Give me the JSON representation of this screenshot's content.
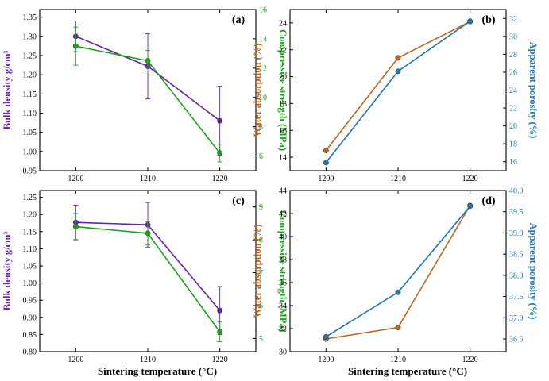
{
  "colors": {
    "purple": "#6a22a8",
    "green": "#1aa31a",
    "orange": "#c0651e",
    "blue": "#1f77b4",
    "axis": "#000000"
  },
  "xlabel_bottom_left": "Sintering temperature (°C)",
  "xlabel_bottom_right": "Sintering temperature (°C)",
  "chart_data": [
    {
      "id": "a",
      "type": "line",
      "panel_label": "(a)",
      "categories": [
        "1200",
        "1210",
        "1220"
      ],
      "x": [
        1200,
        1210,
        1220
      ],
      "xlim": [
        1195,
        1225
      ],
      "left_axis": {
        "label": "Bulk density g/cm³",
        "ylim": [
          0.95,
          1.37
        ],
        "ticks": [
          "0.95",
          "1.00",
          "1.05",
          "1.10",
          "1.15",
          "1.20",
          "1.25",
          "1.30",
          "1.35"
        ],
        "color_key": "purple"
      },
      "right_axis": {
        "label": "Compressive strength (MPa)",
        "ylim": [
          5,
          16
        ],
        "ticks": [
          "6",
          "8",
          "10",
          "12",
          "14",
          "16"
        ],
        "color_key": "green"
      },
      "series": [
        {
          "name": "Bulk density",
          "axis": "left",
          "color_key": "purple",
          "values": [
            1.3,
            1.222,
            1.08
          ],
          "errors": [
            0.04,
            0.085,
            0.09
          ]
        },
        {
          "name": "Compressive strength",
          "axis": "right",
          "color_key": "green",
          "values": [
            13.5,
            12.5,
            6.2
          ],
          "errors": [
            1.3,
            0.7,
            0.6
          ]
        }
      ]
    },
    {
      "id": "b",
      "type": "line",
      "panel_label": "(b)",
      "categories": [
        "1200",
        "1210",
        "1220"
      ],
      "x": [
        1200,
        1210,
        1220
      ],
      "xlim": [
        1195,
        1225
      ],
      "left_axis": {
        "label": "Water absorption (%)",
        "ylim": [
          13,
          25
        ],
        "ticks": [
          "14",
          "16",
          "18",
          "20",
          "22",
          "24"
        ],
        "color_key": "orange"
      },
      "right_axis": {
        "label": "Apparent porosity (%)",
        "ylim": [
          15,
          33
        ],
        "ticks": [
          "16",
          "18",
          "20",
          "22",
          "24",
          "26",
          "28",
          "30",
          "32"
        ],
        "color_key": "blue"
      },
      "series": [
        {
          "name": "Water absorption",
          "axis": "left",
          "color_key": "orange",
          "values": [
            14.5,
            21.4,
            24.1
          ],
          "errors": []
        },
        {
          "name": "Apparent porosity",
          "axis": "right",
          "color_key": "blue",
          "values": [
            15.9,
            26.1,
            31.7
          ],
          "errors": []
        }
      ]
    },
    {
      "id": "c",
      "type": "line",
      "panel_label": "(c)",
      "categories": [
        "1200",
        "1210",
        "1220"
      ],
      "x": [
        1200,
        1210,
        1220
      ],
      "xlim": [
        1195,
        1225
      ],
      "left_axis": {
        "label": "Bulk density g/cm³",
        "ylim": [
          0.8,
          1.27
        ],
        "ticks": [
          "0.80",
          "0.85",
          "0.90",
          "0.95",
          "1.00",
          "1.05",
          "1.10",
          "1.15",
          "1.20",
          "1.25"
        ],
        "color_key": "purple"
      },
      "right_axis": {
        "label": "Compressive strength (MPa)",
        "ylim": [
          4.6,
          9.5
        ],
        "ticks": [
          "5",
          "6",
          "7",
          "8",
          "9"
        ],
        "color_key": "green"
      },
      "series": [
        {
          "name": "Bulk density",
          "axis": "left",
          "color_key": "purple",
          "values": [
            1.177,
            1.17,
            0.92
          ],
          "errors": [
            0.05,
            0.065,
            0.07
          ]
        },
        {
          "name": "Compressive strength",
          "axis": "right",
          "color_key": "green",
          "values": [
            8.4,
            8.2,
            5.2
          ],
          "errors": [
            0.4,
            0.35,
            0.3
          ]
        }
      ]
    },
    {
      "id": "d",
      "type": "line",
      "panel_label": "(d)",
      "categories": [
        "1200",
        "1210",
        "1220"
      ],
      "x": [
        1200,
        1210,
        1220
      ],
      "xlim": [
        1195,
        1225
      ],
      "left_axis": {
        "label": "Water absorption (%)",
        "ylim": [
          30,
          44
        ],
        "ticks": [
          "30",
          "32",
          "34",
          "36",
          "38",
          "40",
          "42",
          "44"
        ],
        "color_key": "orange"
      },
      "right_axis": {
        "label": "Apparent porosity (%)",
        "ylim": [
          36.2,
          40.0
        ],
        "ticks": [
          "36.5",
          "37.0",
          "37.5",
          "38.0",
          "38.5",
          "39.0",
          "39.5",
          "40.0"
        ],
        "color_key": "blue"
      },
      "series": [
        {
          "name": "Water absorption",
          "axis": "left",
          "color_key": "orange",
          "values": [
            31.1,
            32.1,
            42.7
          ],
          "errors": []
        },
        {
          "name": "Apparent porosity",
          "axis": "right",
          "color_key": "blue",
          "values": [
            36.55,
            37.6,
            39.63
          ],
          "errors": []
        }
      ]
    }
  ]
}
